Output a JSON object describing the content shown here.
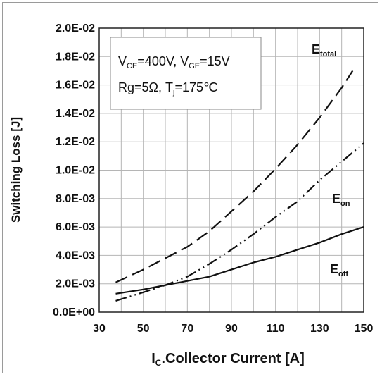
{
  "chart_data": {
    "type": "line",
    "xlabel_main": "I",
    "xlabel_sub": "C",
    "xlabel_rest": ".Collector Current [A]",
    "ylabel": "Switching Loss [J]",
    "xlim": [
      30,
      150
    ],
    "ylim": [
      0,
      0.02
    ],
    "x_ticks": [
      "30",
      "50",
      "70",
      "90",
      "110",
      "130",
      "150"
    ],
    "y_ticks": [
      "0.0E+00",
      "2.0E-03",
      "4.0E-03",
      "6.0E-03",
      "8.0E-03",
      "1.0E-02",
      "1.2E-02",
      "1.4E-02",
      "1.6E-02",
      "1.8E-02",
      "2.0E-02"
    ],
    "grid": true,
    "conditions": {
      "line1": {
        "a": "V",
        "a_sub": "CE",
        "b": "=400V, V",
        "b_sub": "GE",
        "c": "=15V"
      },
      "line2": {
        "a": "Rg=5Ω, T",
        "a_sub": "j",
        "b": "=175℃"
      }
    },
    "series": [
      {
        "name_main": "E",
        "name_sub": "total",
        "style": "dashed",
        "x": [
          37.5,
          50,
          60,
          70,
          80,
          90,
          100,
          110,
          120,
          130,
          140,
          145
        ],
        "y": [
          0.0021,
          0.003,
          0.0038,
          0.0046,
          0.0057,
          0.0071,
          0.0085,
          0.0101,
          0.0118,
          0.0137,
          0.0158,
          0.017
        ]
      },
      {
        "name_main": "E",
        "name_sub": "on",
        "style": "dash-dot-dot",
        "x": [
          37.5,
          50,
          60,
          70,
          80,
          90,
          100,
          110,
          120,
          130,
          140,
          150
        ],
        "y": [
          0.0008,
          0.0014,
          0.0019,
          0.0025,
          0.0034,
          0.0044,
          0.0055,
          0.0067,
          0.0078,
          0.0093,
          0.0106,
          0.0119
        ]
      },
      {
        "name_main": "E",
        "name_sub": "off",
        "style": "solid",
        "x": [
          37.5,
          50,
          60,
          70,
          80,
          90,
          100,
          110,
          120,
          130,
          140,
          150
        ],
        "y": [
          0.0013,
          0.0016,
          0.0019,
          0.0022,
          0.0025,
          0.003,
          0.0035,
          0.0039,
          0.0044,
          0.0049,
          0.0055,
          0.006
        ]
      }
    ]
  }
}
